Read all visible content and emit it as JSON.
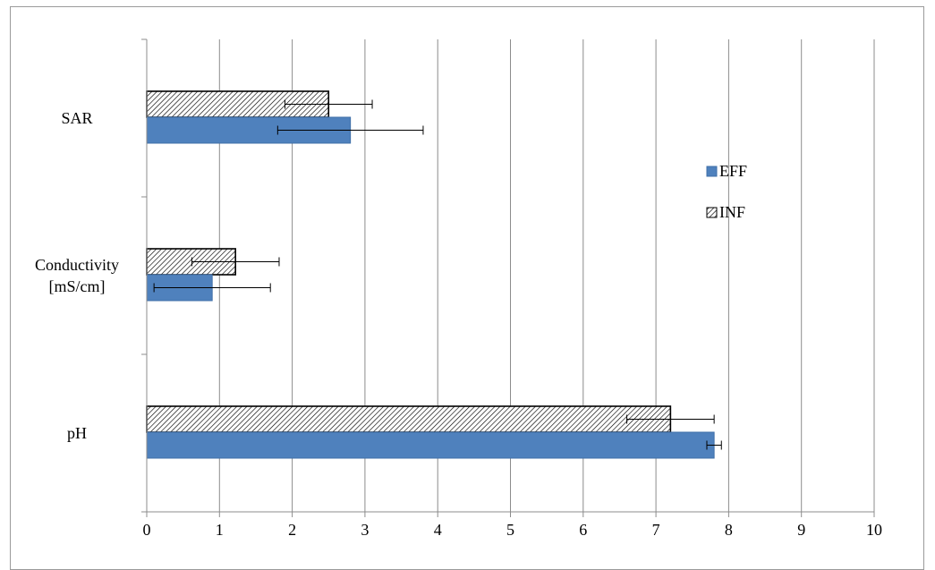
{
  "chart_data": {
    "type": "bar",
    "orientation": "horizontal",
    "categories": [
      "SAR",
      "Conductivity\n[mS/cm]",
      "pH"
    ],
    "series": [
      {
        "name": "EFF",
        "color": "#4f81bd",
        "pattern": "solid",
        "values": [
          2.8,
          0.9,
          7.8
        ],
        "errors": [
          1.0,
          0.8,
          0.1
        ]
      },
      {
        "name": "INF",
        "color": "#ffffff",
        "pattern": "diagonal-hatch",
        "values": [
          2.5,
          1.22,
          7.2
        ],
        "errors": [
          0.6,
          0.6,
          0.6
        ]
      }
    ],
    "xlim": [
      0,
      10
    ],
    "xticks": [
      0,
      1,
      2,
      3,
      4,
      5,
      6,
      7,
      8,
      9,
      10
    ],
    "grid": true,
    "legend": {
      "placement": "right",
      "entries": [
        "EFF",
        "INF"
      ]
    },
    "title": "",
    "xlabel": "",
    "ylabel": ""
  }
}
